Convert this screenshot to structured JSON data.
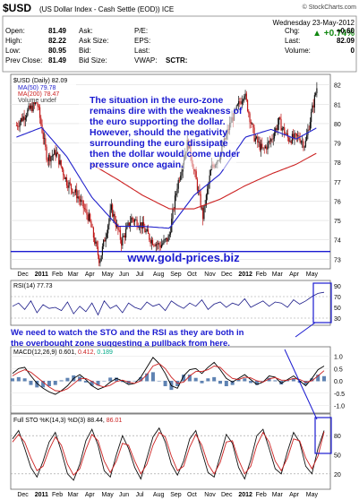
{
  "header": {
    "symbol": "$USD",
    "description": "(US Dollar Index - Cash Settle (EOD)) ICE",
    "watermark": "© StockCharts.com",
    "date": "Wednesday 23-May-2012",
    "quote": [
      [
        "Open:",
        "81.49",
        "Ask:",
        "",
        "P/E:",
        "",
        "Chg:",
        "+0.60"
      ],
      [
        "High:",
        "82.22",
        "Ask Size:",
        "",
        "EPS:",
        "",
        "Last:",
        "82.09"
      ],
      [
        "Low:",
        "80.95",
        "Bid:",
        "",
        "Last:",
        "",
        "Volume:",
        "0"
      ],
      [
        "Prev Close:",
        "81.49",
        "Bid Size:",
        "",
        "VWAP:",
        "SCTR:",
        "",
        ""
      ]
    ],
    "change_pct": "▲ +0.74%",
    "up_color": "#118811"
  },
  "annotations": {
    "main": "The situation in the euro-zone remains dire with the weakness of the euro supporting the dollar. However, should the negativity surrounding the euro dissipate then the dollar would come under pressure once again.",
    "main_lines": [
      "The situation in the euro-zone",
      "remains dire with the weakness of",
      "the euro supporting the dollar.",
      "However, should the negativity",
      "surrounding the euro dissipate",
      "then the dollar would come under",
      "pressure once again."
    ],
    "site": "www.gold-prices.biz",
    "lower": "We need to watch the STO and the RSI as they are both in the overbought zone suggesting a pullback from here.",
    "lower_lines": [
      "We need to watch the STO and the RSI as they are both in",
      "the overbought zone suggesting a pullback from here."
    ],
    "text_color": "#1a1ad0"
  },
  "chart_data": [
    {
      "type": "candlestick",
      "title": "$USD (Daily) 82.09",
      "legend": [
        {
          "name": "MA(50) 79.78",
          "color": "#2222cc"
        },
        {
          "name": "MA(200) 78.47",
          "color": "#cc2222"
        },
        {
          "name": "Volume undef",
          "color": "#444444"
        }
      ],
      "yticks": [
        73,
        74,
        75,
        76,
        77,
        78,
        79,
        80,
        81,
        82
      ],
      "ylim": [
        72.6,
        82.4
      ],
      "support_level": 73.4,
      "x_range": [
        "2010-12-01",
        "2012-05-31"
      ],
      "close_path": [
        [
          "2010-12-01",
          79.9
        ],
        [
          "2010-12-20",
          80.6
        ],
        [
          "2011-01-07",
          81.1
        ],
        [
          "2011-01-25",
          78.2
        ],
        [
          "2011-02-10",
          78.5
        ],
        [
          "2011-03-01",
          77.0
        ],
        [
          "2011-03-20",
          76.3
        ],
        [
          "2011-04-10",
          75.1
        ],
        [
          "2011-04-29",
          72.9
        ],
        [
          "2011-05-20",
          75.6
        ],
        [
          "2011-06-07",
          73.9
        ],
        [
          "2011-06-25",
          75.1
        ],
        [
          "2011-07-12",
          74.8
        ],
        [
          "2011-07-30",
          74.0
        ],
        [
          "2011-08-15",
          73.7
        ],
        [
          "2011-08-31",
          74.1
        ],
        [
          "2011-09-15",
          76.8
        ],
        [
          "2011-10-04",
          79.1
        ],
        [
          "2011-10-20",
          76.9
        ],
        [
          "2011-10-31",
          75.2
        ],
        [
          "2011-11-15",
          77.7
        ],
        [
          "2011-12-01",
          78.4
        ],
        [
          "2011-12-20",
          80.1
        ],
        [
          "2012-01-13",
          81.6
        ],
        [
          "2012-01-31",
          79.3
        ],
        [
          "2012-02-15",
          78.6
        ],
        [
          "2012-02-29",
          79.1
        ],
        [
          "2012-03-15",
          80.1
        ],
        [
          "2012-04-01",
          79.2
        ],
        [
          "2012-04-20",
          79.3
        ],
        [
          "2012-05-01",
          78.9
        ],
        [
          "2012-05-10",
          80.2
        ],
        [
          "2012-05-23",
          82.0
        ]
      ],
      "ma50_path": [
        [
          "2010-12-01",
          79.3
        ],
        [
          "2011-01-15",
          79.8
        ],
        [
          "2011-03-01",
          78.3
        ],
        [
          "2011-04-15",
          76.2
        ],
        [
          "2011-06-01",
          74.7
        ],
        [
          "2011-07-15",
          74.7
        ],
        [
          "2011-09-01",
          74.6
        ],
        [
          "2011-10-15",
          76.3
        ],
        [
          "2011-12-01",
          77.4
        ],
        [
          "2012-01-15",
          79.3
        ],
        [
          "2012-03-01",
          79.7
        ],
        [
          "2012-04-15",
          79.2
        ],
        [
          "2012-05-23",
          79.8
        ]
      ],
      "ma200_path": [
        [
          "2011-04-15",
          77.9
        ],
        [
          "2011-06-01",
          77.1
        ],
        [
          "2011-07-15",
          76.3
        ],
        [
          "2011-09-01",
          75.6
        ],
        [
          "2011-10-15",
          75.6
        ],
        [
          "2011-12-01",
          76.1
        ],
        [
          "2012-01-15",
          76.8
        ],
        [
          "2012-03-01",
          77.4
        ],
        [
          "2012-04-15",
          77.9
        ],
        [
          "2012-05-23",
          78.5
        ]
      ]
    },
    {
      "type": "line",
      "title": "RSI(14) 77.73",
      "yticks": [
        30,
        50,
        70,
        90
      ],
      "ylim": [
        20,
        95
      ],
      "bands": [
        30,
        70
      ],
      "values": [
        52,
        58,
        46,
        62,
        40,
        55,
        48,
        50,
        44,
        60,
        38,
        52,
        42,
        58,
        36,
        62,
        48,
        54,
        40,
        58,
        50,
        46,
        60,
        52,
        56,
        44,
        62,
        54,
        48,
        58,
        52,
        64,
        46,
        56,
        60,
        50,
        58,
        54,
        66,
        50,
        56,
        62,
        52,
        60,
        58,
        50,
        64,
        56,
        62,
        70,
        76,
        78
      ]
    },
    {
      "type": "line",
      "title": "MACD(12,26,9)",
      "values_label": [
        "0.601",
        "0.412",
        "0.189"
      ],
      "series_colors": [
        "#000000",
        "#cc2222",
        "#00aa88"
      ],
      "yticks": [
        -1.0,
        -0.5,
        0.0,
        0.5,
        1.0
      ],
      "ylim": [
        -1.2,
        1.2
      ],
      "macd": [
        0.3,
        0.5,
        0.55,
        0.2,
        -0.1,
        -0.3,
        -0.45,
        -0.55,
        -0.4,
        -0.2,
        0.1,
        0.25,
        0.05,
        -0.2,
        -0.35,
        -0.25,
        -0.05,
        0.1,
        0.0,
        -0.15,
        -0.1,
        0.15,
        0.55,
        0.95,
        0.7,
        0.3,
        -0.2,
        -0.3,
        0.2,
        0.45,
        0.5,
        0.3,
        0.55,
        0.75,
        0.45,
        0.1,
        -0.05,
        0.1,
        0.25,
        0.05,
        -0.15,
        -0.05,
        0.2,
        0.15,
        -0.1,
        0.05,
        0.2,
        0.0,
        -0.2,
        0.1,
        0.45,
        0.6
      ],
      "signal": [
        0.2,
        0.35,
        0.45,
        0.35,
        0.15,
        -0.05,
        -0.25,
        -0.4,
        -0.42,
        -0.32,
        -0.12,
        0.08,
        0.1,
        -0.02,
        -0.18,
        -0.25,
        -0.18,
        -0.03,
        0.03,
        -0.05,
        -0.1,
        0.0,
        0.25,
        0.6,
        0.7,
        0.5,
        0.15,
        -0.1,
        -0.05,
        0.2,
        0.38,
        0.38,
        0.45,
        0.6,
        0.55,
        0.3,
        0.1,
        0.05,
        0.15,
        0.12,
        0.0,
        -0.05,
        0.08,
        0.13,
        0.03,
        0.02,
        0.1,
        0.06,
        -0.06,
        0.0,
        0.2,
        0.41
      ]
    },
    {
      "type": "line",
      "title": "Full STO %K(14,3) %D(3)",
      "values_label": [
        "88.44",
        "86.01"
      ],
      "yticks": [
        20,
        50,
        80
      ],
      "ylim": [
        0,
        100
      ],
      "bands": [
        20,
        80
      ],
      "k": [
        75,
        88,
        60,
        30,
        15,
        40,
        70,
        85,
        55,
        20,
        10,
        35,
        72,
        90,
        65,
        25,
        15,
        50,
        80,
        60,
        30,
        12,
        45,
        78,
        92,
        70,
        35,
        18,
        40,
        75,
        88,
        55,
        22,
        15,
        48,
        82,
        68,
        30,
        12,
        42,
        80,
        90,
        60,
        28,
        20,
        55,
        85,
        70,
        32,
        20,
        60,
        88
      ],
      "d": [
        70,
        82,
        70,
        45,
        25,
        32,
        58,
        78,
        65,
        35,
        18,
        28,
        58,
        82,
        72,
        40,
        22,
        40,
        68,
        65,
        40,
        20,
        35,
        65,
        85,
        78,
        48,
        25,
        32,
        62,
        82,
        65,
        35,
        20,
        38,
        70,
        72,
        42,
        20,
        32,
        65,
        85,
        70,
        40,
        25,
        45,
        75,
        72,
        45,
        28,
        48,
        86
      ]
    }
  ],
  "x_axis": {
    "labels": [
      "Dec",
      "2011",
      "Feb",
      "Mar",
      "Apr",
      "May",
      "Jun",
      "Jul",
      "Aug",
      "Sep",
      "Oct",
      "Nov",
      "Dec",
      "2012",
      "Feb",
      "Mar",
      "Apr",
      "May"
    ],
    "bold": [
      "2011",
      "2012"
    ]
  }
}
